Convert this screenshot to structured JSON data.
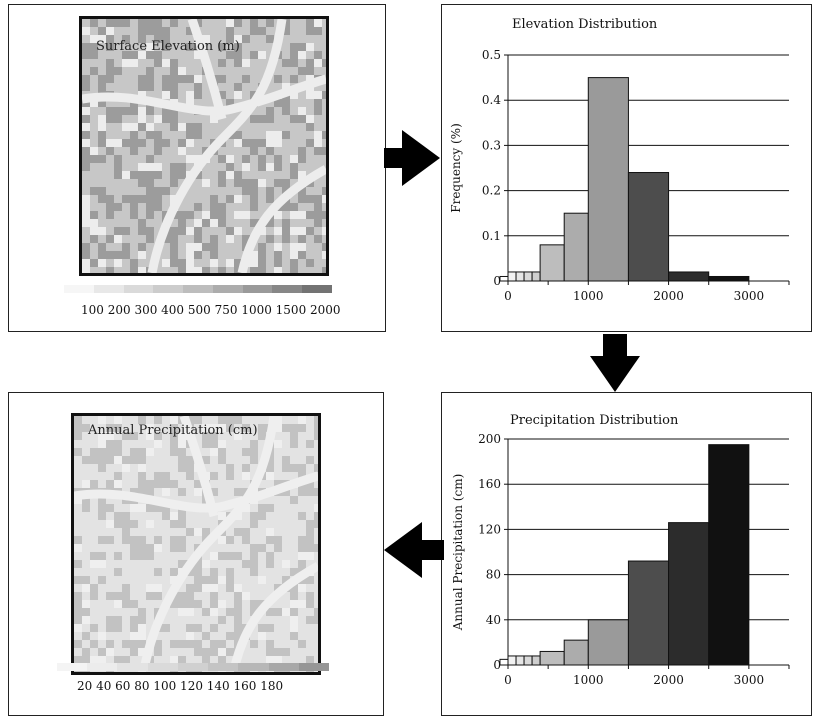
{
  "panels": {
    "elevation_map": {
      "title": "Surface Elevation (m)",
      "legend_labels": "100 200 300 400 500 750 1000 1500 2000",
      "legend_colors": [
        "#f6f6f6",
        "#e8e8e8",
        "#dadada",
        "#cccccc",
        "#bdbdbd",
        "#acacac",
        "#9a9a9a",
        "#878787",
        "#737373"
      ],
      "background_color": "#c7c7c7",
      "ridge_color": "#9c9c9c",
      "valley_color": "#ededed"
    },
    "precip_map": {
      "title": "Annual Precipitation (cm)",
      "legend_labels": "20 40 60 80 100 120 140 160 180",
      "legend_colors": [
        "#f4f4f4",
        "#ececec",
        "#e3e3e3",
        "#dadada",
        "#d0d0d0",
        "#c4c4c4",
        "#b7b7b7",
        "#a8a8a8",
        "#969696"
      ],
      "background_color": "#e3e3e3",
      "ridge_color": "#c2c2c2",
      "valley_color": "#efefef"
    }
  },
  "chart_data": [
    {
      "type": "bar",
      "title": "Elevation Distribution",
      "xlabel": "",
      "ylabel": "Frequency (%)",
      "ylim": [
        0,
        0.5
      ],
      "xlim": [
        0,
        3500
      ],
      "y_ticks": [
        0,
        0.1,
        0.2,
        0.3,
        0.4,
        0.5
      ],
      "y_tick_labels": [
        "0",
        "0.1",
        "0.2",
        "0.3",
        "0.4",
        "0.5"
      ],
      "x_ticks": [
        0,
        1000,
        2000,
        3000
      ],
      "x_tick_labels": [
        "0",
        "1000",
        "2000",
        "3000"
      ],
      "grid": true,
      "bins": [
        {
          "start": -100,
          "end": 0,
          "value": 0.01,
          "color": "#ffffff"
        },
        {
          "start": 0,
          "end": 100,
          "value": 0.02,
          "color": "#f2f2f2"
        },
        {
          "start": 100,
          "end": 200,
          "value": 0.02,
          "color": "#e6e6e6"
        },
        {
          "start": 200,
          "end": 300,
          "value": 0.02,
          "color": "#dadada"
        },
        {
          "start": 300,
          "end": 400,
          "value": 0.02,
          "color": "#cecece"
        },
        {
          "start": 400,
          "end": 700,
          "value": 0.08,
          "color": "#bdbdbd"
        },
        {
          "start": 700,
          "end": 1000,
          "value": 0.15,
          "color": "#acacac"
        },
        {
          "start": 1000,
          "end": 1500,
          "value": 0.45,
          "color": "#9a9a9a"
        },
        {
          "start": 1500,
          "end": 2000,
          "value": 0.24,
          "color": "#4d4d4d"
        },
        {
          "start": 2000,
          "end": 2500,
          "value": 0.02,
          "color": "#2c2c2c"
        },
        {
          "start": 2500,
          "end": 3000,
          "value": 0.01,
          "color": "#111111"
        }
      ]
    },
    {
      "type": "bar",
      "title": "Precipitation Distribution",
      "xlabel": "",
      "ylabel": "Annual Precipitation (cm)",
      "ylim": [
        0,
        200
      ],
      "xlim": [
        0,
        3500
      ],
      "y_ticks": [
        0,
        40,
        80,
        120,
        160,
        200
      ],
      "y_tick_labels": [
        "0",
        "40",
        "80",
        "120",
        "160",
        "200"
      ],
      "x_ticks": [
        0,
        1000,
        2000,
        3000
      ],
      "x_tick_labels": [
        "0",
        "1000",
        "2000",
        "3000"
      ],
      "grid": true,
      "bins": [
        {
          "start": -100,
          "end": 0,
          "value": 5,
          "color": "#ffffff"
        },
        {
          "start": 0,
          "end": 100,
          "value": 8,
          "color": "#f2f2f2"
        },
        {
          "start": 100,
          "end": 200,
          "value": 8,
          "color": "#e6e6e6"
        },
        {
          "start": 200,
          "end": 300,
          "value": 8,
          "color": "#dadada"
        },
        {
          "start": 300,
          "end": 400,
          "value": 8,
          "color": "#cecece"
        },
        {
          "start": 400,
          "end": 700,
          "value": 12,
          "color": "#bdbdbd"
        },
        {
          "start": 700,
          "end": 1000,
          "value": 22,
          "color": "#acacac"
        },
        {
          "start": 1000,
          "end": 1500,
          "value": 40,
          "color": "#9a9a9a"
        },
        {
          "start": 1500,
          "end": 2000,
          "value": 92,
          "color": "#4d4d4d"
        },
        {
          "start": 2000,
          "end": 2500,
          "value": 126,
          "color": "#2c2c2c"
        },
        {
          "start": 2500,
          "end": 3000,
          "value": 195,
          "color": "#111111"
        }
      ]
    }
  ]
}
